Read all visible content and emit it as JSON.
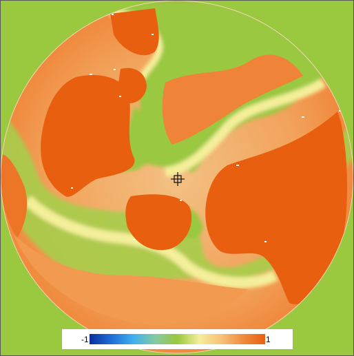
{
  "colorbar": {
    "min_label": "-1",
    "max_label": "1",
    "colors": [
      "#0a2f9c",
      "#1f6ed6",
      "#3fb0ee",
      "#86c9a2",
      "#9ac83f",
      "#f4ef9a",
      "#f7c27a",
      "#f08a3e",
      "#e8600f"
    ]
  },
  "field_colors": {
    "background": "#9ac83f",
    "positive_peak": "#e8600f",
    "positive_mid": "#f5b070",
    "zero_band": "#f4ef9a",
    "neutral": "#9ac83f"
  },
  "cursor": {
    "icon": "crosshair-icon"
  }
}
